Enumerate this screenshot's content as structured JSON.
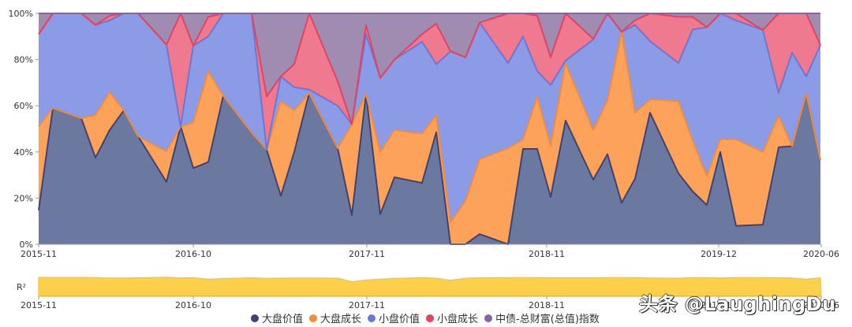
{
  "chart_data": {
    "type": "area",
    "stacked": true,
    "normalized_percent": true,
    "title": "",
    "xlabel": "",
    "ylabel": "",
    "ylim": [
      0,
      100
    ],
    "y_ticks": [
      "0%",
      "20%",
      "40%",
      "60%",
      "80%",
      "100%"
    ],
    "x_tick_labels": [
      "2015-11",
      "2016-10",
      "2017-11",
      "2018-11",
      "2019-12",
      "2020-06"
    ],
    "x_tick_positions": [
      0.0,
      0.1976,
      0.4194,
      0.6492,
      0.869,
      1.0
    ],
    "x_positions": [
      0.0,
      0.0181,
      0.0544,
      0.0726,
      0.0907,
      0.1089,
      0.127,
      0.1633,
      0.1815,
      0.1976,
      0.2167,
      0.2359,
      0.2722,
      0.2913,
      0.3095,
      0.3266,
      0.3458,
      0.3821,
      0.4002,
      0.4183,
      0.4365,
      0.4546,
      0.4899,
      0.5081,
      0.5262,
      0.5454,
      0.5635,
      0.5998,
      0.619,
      0.6371,
      0.6542,
      0.6734,
      0.7087,
      0.7268,
      0.745,
      0.7621,
      0.7813,
      0.8175,
      0.8357,
      0.8538,
      0.871,
      0.8911,
      0.9254,
      0.9456,
      0.9627,
      0.9808,
      0.999
    ],
    "series": [
      {
        "name": "大盘价值",
        "color": "#3a4478",
        "fill": "#6b789f",
        "values": [
          14.7,
          59,
          54.6,
          37.5,
          49.5,
          58,
          46.8,
          27,
          51,
          33,
          35.6,
          64.3,
          48.4,
          41,
          21,
          40,
          65.5,
          41.6,
          12.6,
          65,
          13,
          29,
          26.6,
          48.5,
          0,
          0,
          4.4,
          0,
          41.3,
          41.3,
          20.5,
          53.6,
          28,
          39,
          18,
          28.4,
          57,
          30.7,
          22.9,
          17,
          40,
          8,
          8.5,
          42,
          42.5,
          65.5,
          36.5
        ]
      },
      {
        "name": "大盘成长",
        "color": "#f28c38",
        "fill": "#fca25a",
        "values": [
          36.3,
          0,
          0,
          18.5,
          16.5,
          0,
          0,
          13.3,
          0,
          19.8,
          39.4,
          0,
          0,
          0,
          41,
          18,
          0,
          0,
          39.4,
          0,
          27,
          20.5,
          21.4,
          7.5,
          9.6,
          18.8,
          32.5,
          41.6,
          4.1,
          22.7,
          22.2,
          24.9,
          21.5,
          23.5,
          74,
          28.6,
          5.8,
          31.3,
          22.1,
          12.6,
          5.5,
          37.5,
          31.5,
          13.7,
          0,
          0,
          0
        ]
      },
      {
        "name": "小盘价值",
        "color": "#6679d8",
        "fill": "#8c9be6",
        "values": [
          40,
          41,
          45.4,
          39,
          31,
          42,
          53.2,
          46.1,
          0,
          33.2,
          15,
          35.7,
          51.6,
          0,
          10.7,
          10,
          1.5,
          18.4,
          0,
          26,
          32,
          30.5,
          39.7,
          22,
          74,
          62.2,
          59.1,
          36.9,
          44.6,
          11,
          26.3,
          1.1,
          39.2,
          37.5,
          0,
          38,
          25.2,
          16.5,
          48,
          64.4,
          54.5,
          51.5,
          52.8,
          9.8,
          40.5,
          7.2,
          49.8
        ]
      },
      {
        "name": "小盘成长",
        "color": "#e8415f",
        "fill": "#ef7a8f",
        "values": [
          0,
          0,
          0,
          0,
          2,
          0,
          0,
          0,
          49,
          0,
          8.5,
          0,
          0,
          23,
          0,
          10,
          33,
          10.6,
          0,
          4,
          0,
          0,
          3.3,
          17.6,
          0,
          0,
          0,
          21.5,
          10,
          24,
          12,
          20.4,
          0.3,
          0,
          0,
          2,
          12,
          20,
          5.5,
          0,
          0,
          3,
          0,
          34.5,
          17,
          27.3,
          0
        ]
      },
      {
        "name": "中债-总财富(总值)指数",
        "color": "#8a62a6",
        "fill": "#a08cb0",
        "values": [
          9,
          0,
          0,
          5,
          1,
          0,
          0,
          13.6,
          0,
          14,
          1.5,
          0,
          0,
          36,
          27.3,
          22,
          0,
          29.4,
          48,
          5,
          28,
          20,
          9,
          4.4,
          16.4,
          19,
          4,
          0,
          0,
          1,
          19,
          0,
          11,
          0,
          8,
          3,
          0,
          1.5,
          1.5,
          6,
          0,
          0,
          7.2,
          0,
          0,
          0,
          13.7
        ]
      }
    ],
    "legend_position": "bottom",
    "grid": true,
    "sub_chart": {
      "label": "R²",
      "type": "area",
      "color": "#fcd04a",
      "line_color": "#f5c02a",
      "ylim": [
        0,
        1
      ],
      "x_tick_labels": [
        "2015-11",
        "2016-10",
        "2017-11",
        "2018-11",
        "2019-12",
        "2020-06"
      ],
      "values": [
        0.97,
        0.97,
        0.97,
        0.96,
        0.94,
        0.94,
        0.95,
        0.98,
        0.94,
        0.96,
        0.88,
        0.91,
        0.95,
        0.92,
        0.93,
        0.94,
        0.94,
        0.93,
        0.75,
        0.84,
        0.88,
        0.92,
        0.96,
        0.93,
        0.82,
        0.93,
        0.95,
        0.96,
        0.96,
        0.96,
        0.95,
        0.95,
        0.95,
        0.96,
        0.96,
        0.96,
        0.94,
        0.93,
        0.96,
        0.96,
        0.94,
        0.96,
        0.96,
        0.95,
        0.94,
        0.88,
        0.95
      ]
    }
  },
  "legend": {
    "items": [
      {
        "label": "大盘价值",
        "color": "#3a4478"
      },
      {
        "label": "大盘成长",
        "color": "#f28c38"
      },
      {
        "label": "小盘价值",
        "color": "#6679d8"
      },
      {
        "label": "小盘成长",
        "color": "#e8415f"
      },
      {
        "label": "中债-总财富(总值)指数",
        "color": "#8a62a6"
      }
    ]
  },
  "watermark": "头条 @LaughingDu"
}
